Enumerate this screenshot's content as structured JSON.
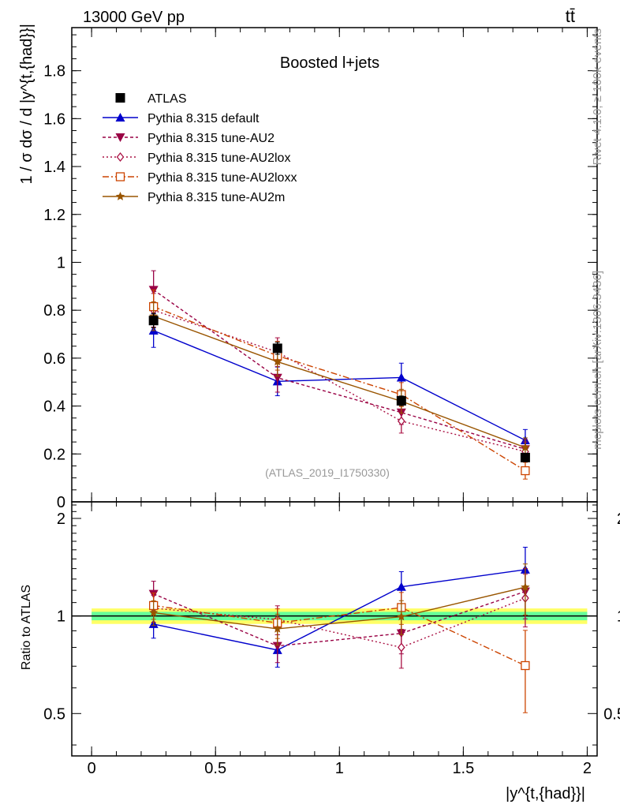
{
  "header": {
    "energy_label": "13000 GeV pp",
    "process_label": "tt̄"
  },
  "side": {
    "rivet_label": "Rivet 4.1.0, ≥ 100k events",
    "mcplots_label": "mcplots.cern.ch [arXiv:1306.3436]"
  },
  "colors": {
    "ATLAS": "#000000",
    "default": "#0000cc",
    "AU2": "#990044",
    "AU2lox": "#aa1144",
    "AU2loxx": "#cc4400",
    "AU2m": "#995500",
    "band_yellow": "#ffff66",
    "band_green": "#66ff99"
  },
  "chart_data": {
    "type": "line",
    "title": "Boosted l+jets",
    "analysis_tag": "(ATLAS_2019_I1750330)",
    "xlabel": "|y^{t,{had}}|",
    "ylabel": "1 / σ dσ / d |y^{t,{had}}|",
    "ratio_ylabel": "Ratio to ATLAS",
    "xlim": [
      -0.08,
      2.04
    ],
    "ylim": [
      0,
      1.98
    ],
    "ratio_ylim": [
      0.37,
      2.25
    ],
    "x": [
      0.25,
      0.75,
      1.25,
      1.75
    ],
    "x_bin_edges": [
      0,
      0.5,
      1,
      1.5,
      2
    ],
    "x_ticks": [
      "0",
      "0.5",
      "1",
      "1.5",
      "2"
    ],
    "y_ticks": [
      "0",
      "0.2",
      "0.4",
      "0.6",
      "0.8",
      "1",
      "1.2",
      "1.4",
      "1.6",
      "1.8"
    ],
    "ratio_ticks": [
      "0.5",
      "1",
      "2"
    ],
    "ratio_band": {
      "inner": 0.03,
      "outer": 0.055
    },
    "series": [
      {
        "key": "ATLAS",
        "name": "ATLAS",
        "values": [
          0.757,
          0.641,
          0.422,
          0.185
        ],
        "errors": [
          0.03,
          0.025,
          0.02,
          0.015
        ],
        "ratio": [
          1,
          1,
          1,
          1
        ],
        "ratio_errors": [
          0.04,
          0.04,
          0.05,
          0.08
        ],
        "marker": "square-filled",
        "dash": ""
      },
      {
        "key": "default",
        "name": "Pythia 8.315 default",
        "values": [
          0.715,
          0.503,
          0.519,
          0.257
        ],
        "errors": [
          0.07,
          0.06,
          0.06,
          0.045
        ],
        "ratio": [
          0.944,
          0.785,
          1.23,
          1.39
        ],
        "ratio_errors": [
          0.09,
          0.09,
          0.14,
          0.24
        ],
        "marker": "triangle-up-filled",
        "dash": ""
      },
      {
        "key": "AU2",
        "name": "Pythia 8.315 tune-AU2",
        "values": [
          0.885,
          0.518,
          0.373,
          0.22
        ],
        "errors": [
          0.08,
          0.06,
          0.05,
          0.04
        ],
        "ratio": [
          1.17,
          0.808,
          0.884,
          1.19
        ],
        "ratio_errors": [
          0.11,
          0.09,
          0.12,
          0.21
        ],
        "marker": "triangle-down-filled",
        "dash": "4,3"
      },
      {
        "key": "AU2lox",
        "name": "Pythia 8.315 tune-AU2lox",
        "values": [
          0.8,
          0.625,
          0.337,
          0.21
        ],
        "errors": [
          0.07,
          0.06,
          0.05,
          0.04
        ],
        "ratio": [
          1.057,
          0.975,
          0.8,
          1.135
        ],
        "ratio_errors": [
          0.1,
          0.1,
          0.11,
          0.21
        ],
        "marker": "diamond-open",
        "dash": "2,3"
      },
      {
        "key": "AU2loxx",
        "name": "Pythia 8.315 tune-AU2loxx",
        "values": [
          0.815,
          0.61,
          0.448,
          0.13
        ],
        "errors": [
          0.07,
          0.06,
          0.05,
          0.035
        ],
        "ratio": [
          1.077,
          0.952,
          1.062,
          0.703
        ],
        "ratio_errors": [
          0.1,
          0.1,
          0.12,
          0.2
        ],
        "marker": "square-open",
        "dash": "8,3,2,3"
      },
      {
        "key": "AU2m",
        "name": "Pythia 8.315 tune-AU2m",
        "values": [
          0.775,
          0.585,
          0.42,
          0.227
        ],
        "errors": [
          0.06,
          0.06,
          0.05,
          0.04
        ],
        "ratio": [
          1.024,
          0.913,
          0.995,
          1.227
        ],
        "ratio_errors": [
          0.09,
          0.1,
          0.12,
          0.22
        ],
        "marker": "star",
        "dash": ""
      }
    ]
  }
}
